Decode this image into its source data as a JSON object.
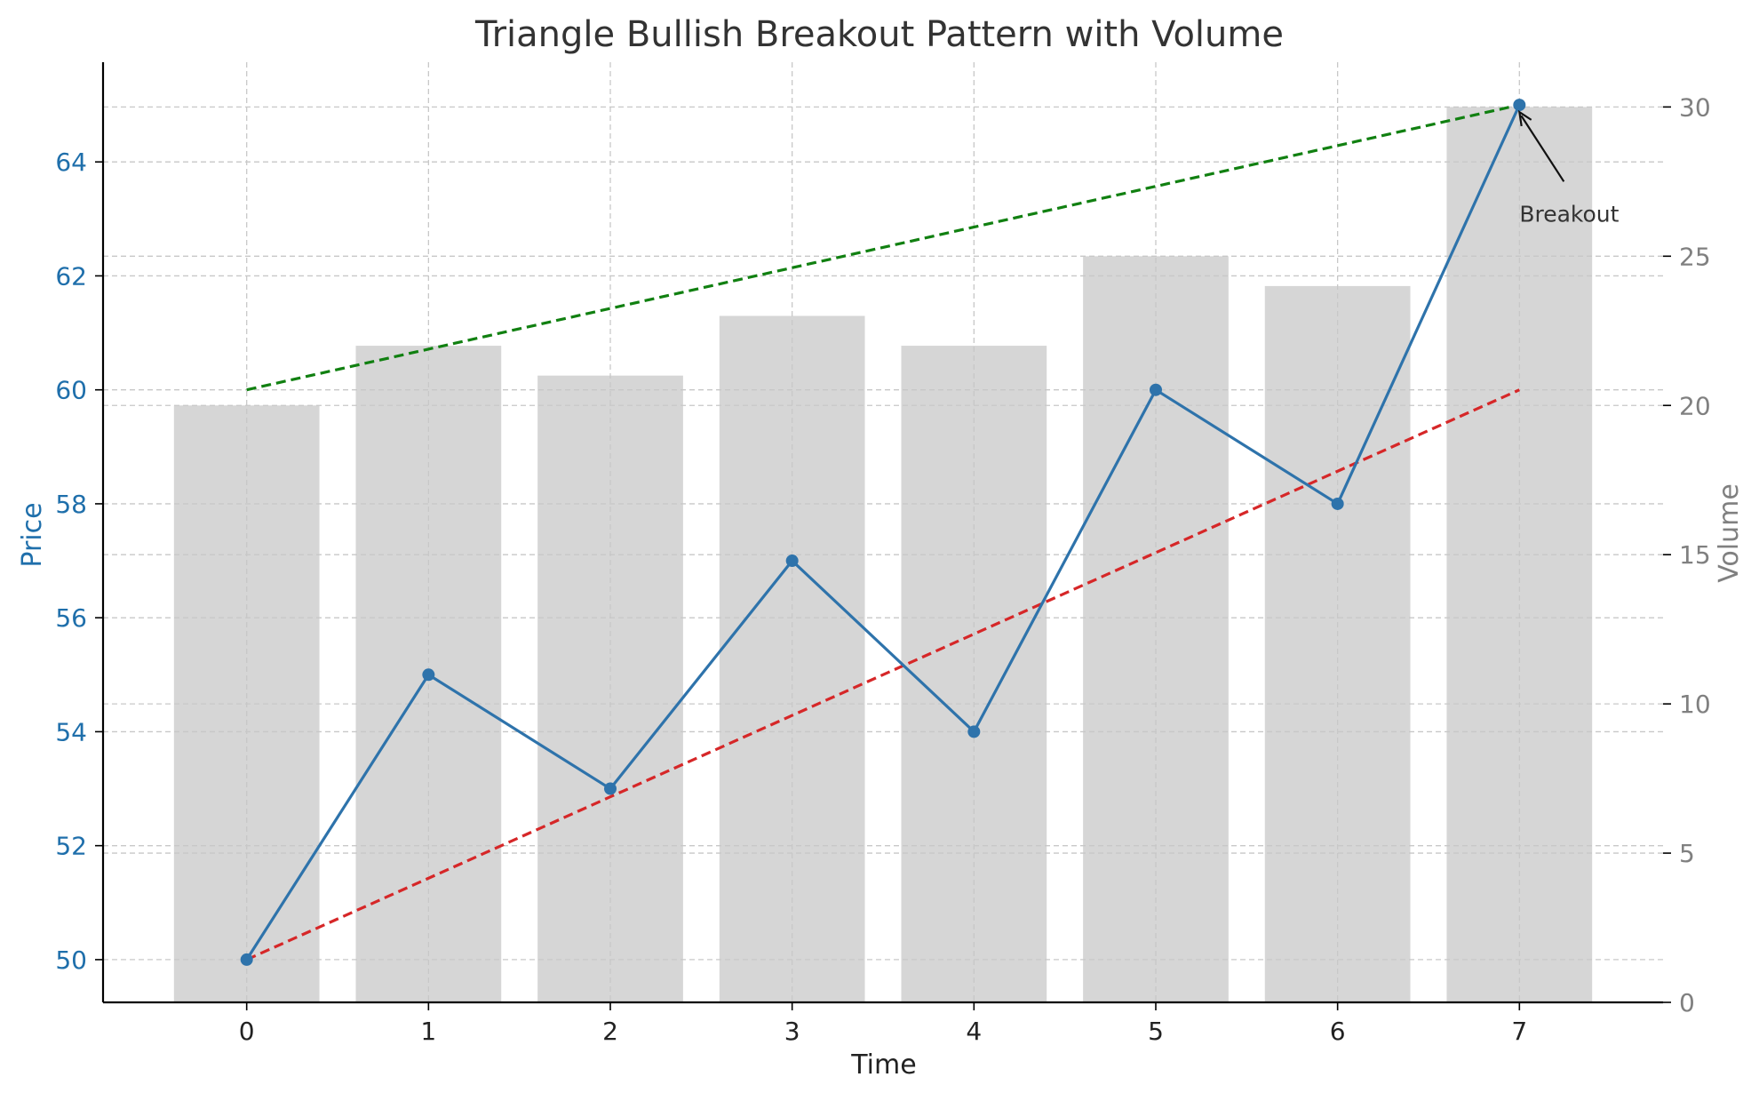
{
  "chart_data": {
    "type": "bar+line",
    "title": "Triangle Bullish Breakout Pattern with Volume",
    "xlabel": "Time",
    "ylabel_left": "Price",
    "ylabel_right": "Volume",
    "x": [
      0,
      1,
      2,
      3,
      4,
      5,
      6,
      7
    ],
    "x_ticks": [
      "0",
      "1",
      "2",
      "3",
      "4",
      "5",
      "6",
      "7"
    ],
    "price": [
      50,
      55,
      53,
      57,
      54,
      60,
      58,
      65
    ],
    "volume": [
      20,
      22,
      21,
      23,
      22,
      25,
      24,
      30
    ],
    "ylim_left": [
      49.25,
      65.75
    ],
    "yticks_left": [
      "50",
      "52",
      "54",
      "56",
      "58",
      "60",
      "62",
      "64"
    ],
    "ylim_right": [
      0,
      31.5
    ],
    "yticks_right": [
      "0",
      "5",
      "10",
      "15",
      "20",
      "25",
      "30"
    ],
    "trendlines": [
      {
        "role": "resistance",
        "from": [
          0,
          60
        ],
        "to": [
          7,
          65
        ],
        "color": "#118011",
        "style": "dashed"
      },
      {
        "role": "support",
        "from": [
          0,
          50
        ],
        "to": [
          7,
          60
        ],
        "color": "#d62728",
        "style": "dashed"
      }
    ],
    "annotation": {
      "text": "Breakout",
      "point": [
        7,
        65
      ],
      "text_at": [
        7,
        63
      ]
    },
    "colors": {
      "price_line": "#2e73ab",
      "left_axis_text": "#1f6fab",
      "right_axis_text": "#808080",
      "volume_bars": "#d6d6d6",
      "grid": "#c8c8c8"
    },
    "grid": true
  }
}
